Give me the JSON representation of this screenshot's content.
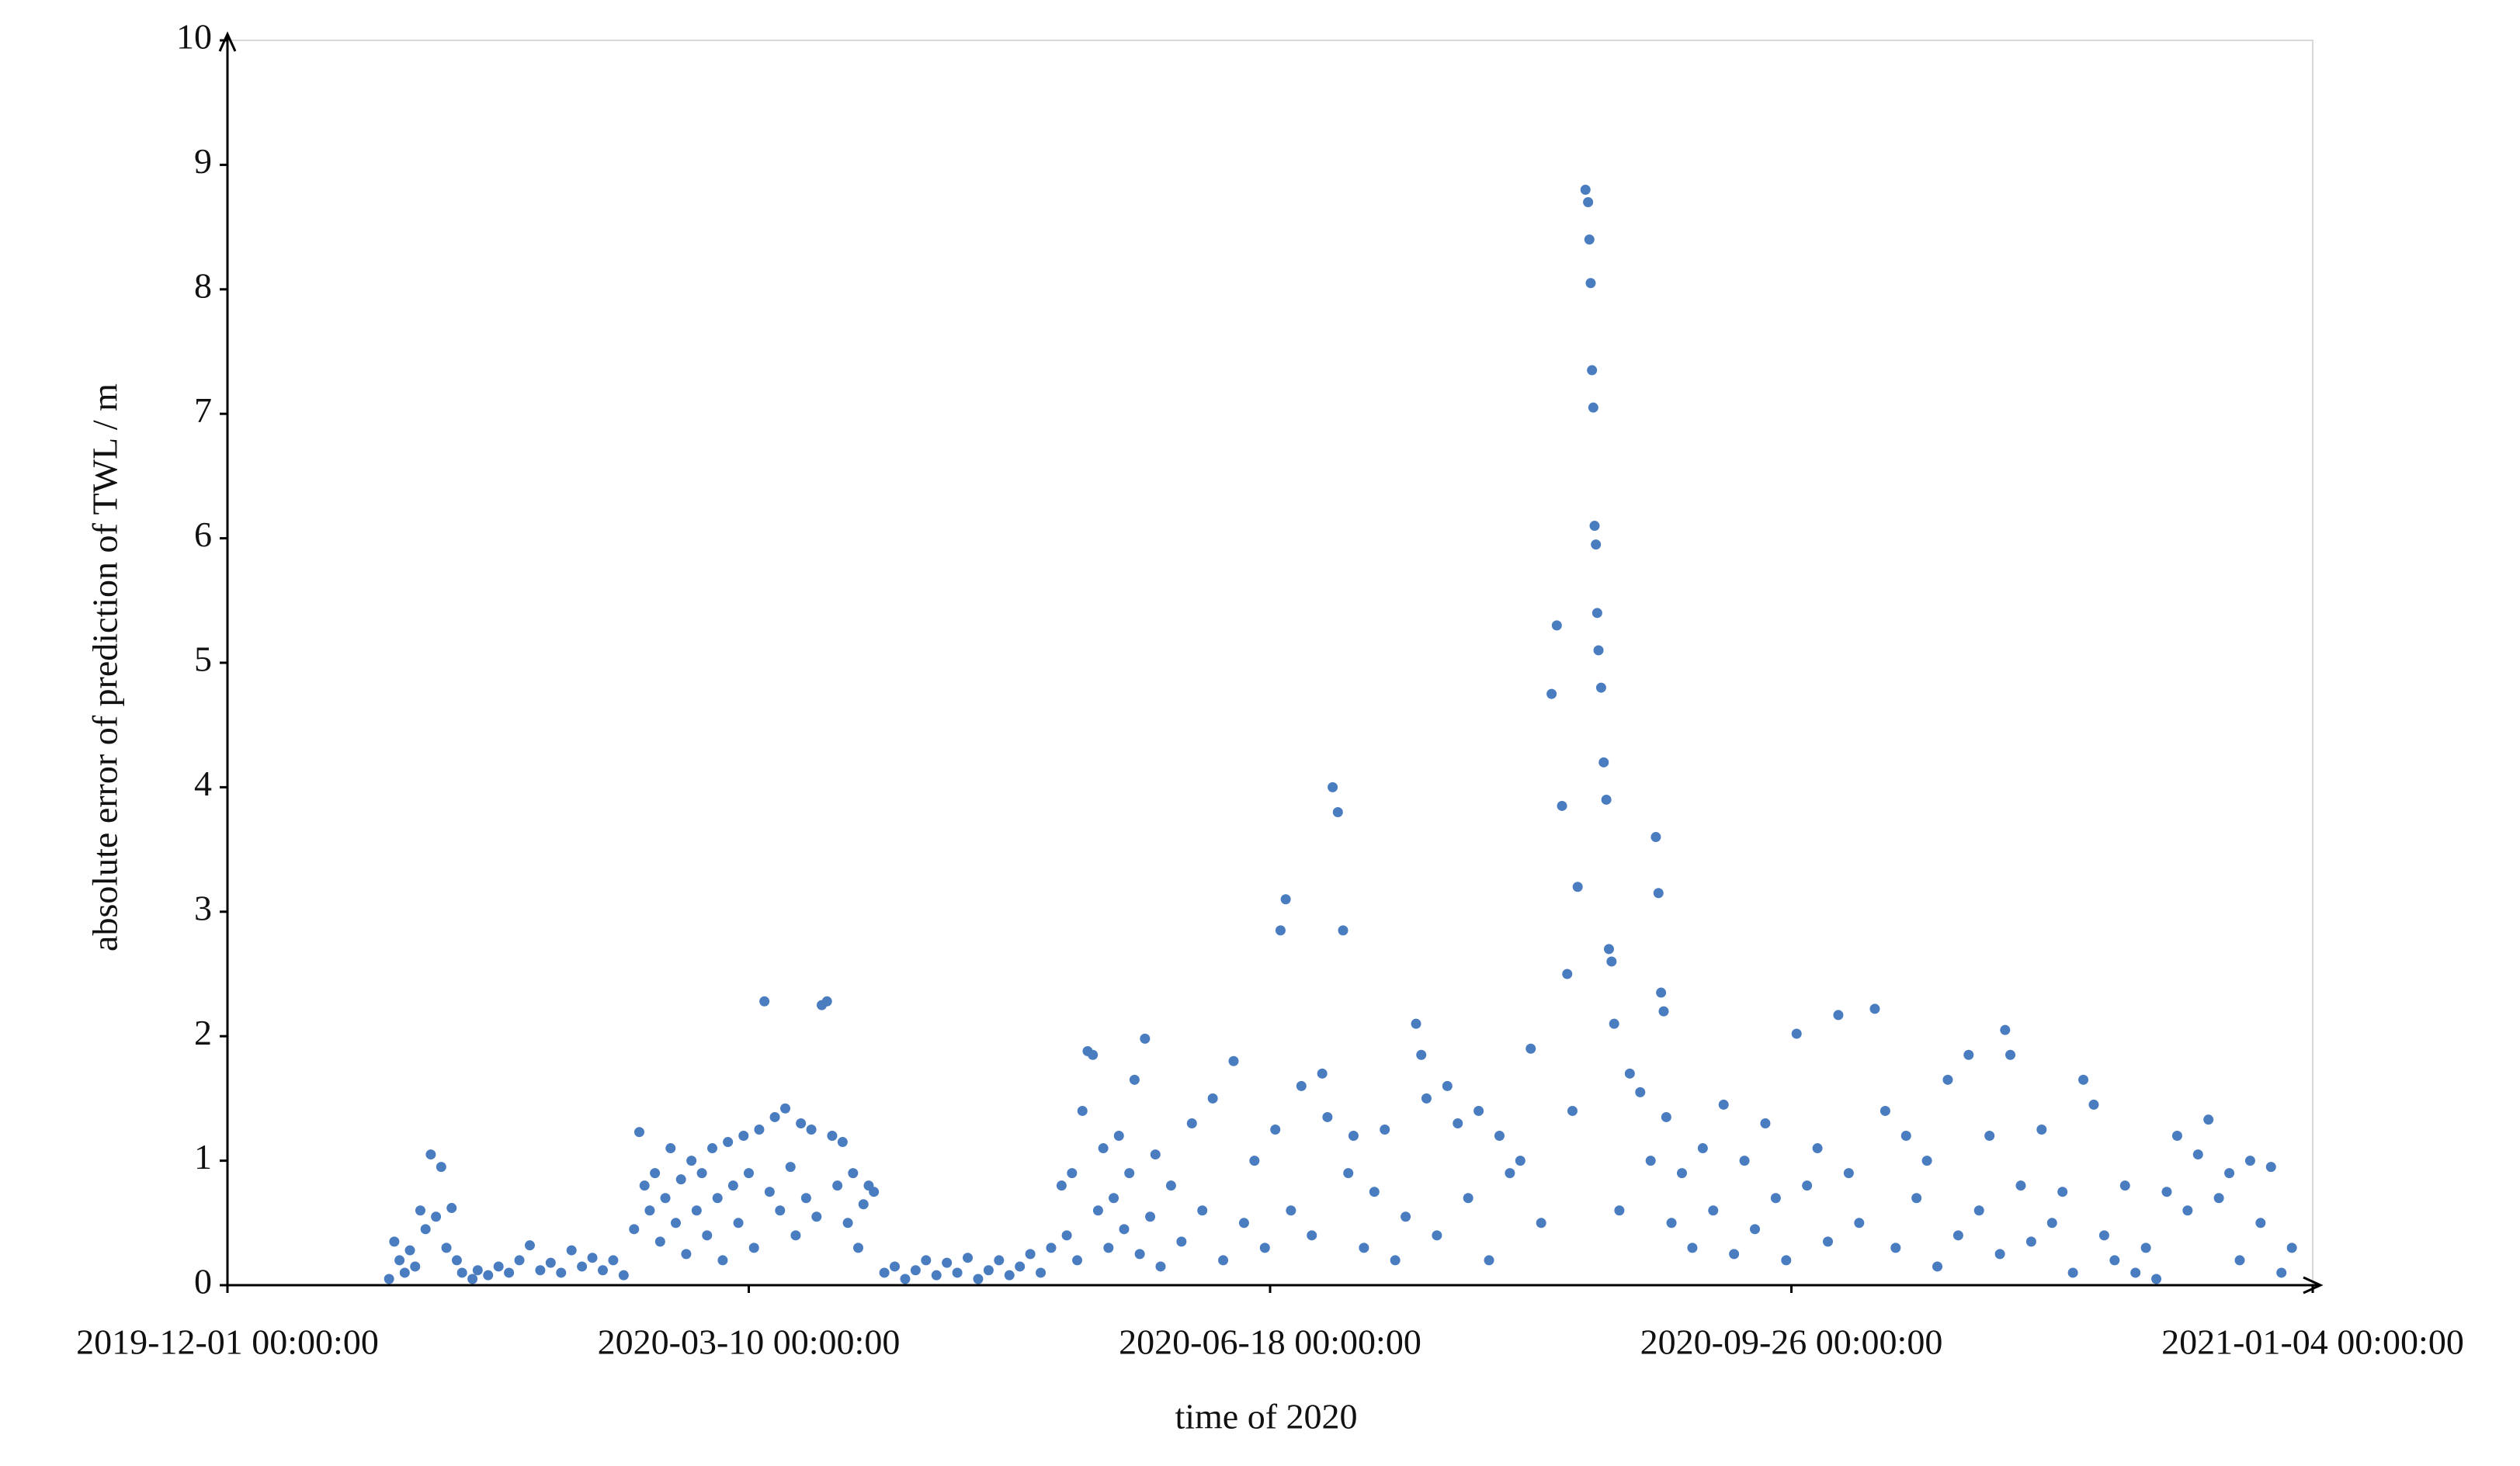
{
  "chart_data": {
    "type": "scatter",
    "x_label": "time of 2020",
    "y_label": "absolute error of prediction of TWL / m",
    "xlim": [
      "2019-12-01 00:00:00",
      "2021-01-04 00:00:00"
    ],
    "xticks": [
      "2019-12-01 00:00:00",
      "2020-03-10 00:00:00",
      "2020-06-18 00:00:00",
      "2020-09-26 00:00:00",
      "2021-01-04 00:00:00"
    ],
    "ylim": [
      0,
      10
    ],
    "yticks": [
      0,
      1,
      2,
      3,
      4,
      5,
      6,
      7,
      8,
      9,
      10
    ],
    "grid": false,
    "x": [
      "2020-01-01 00:00:00",
      "2020-01-02 00:00:00",
      "2020-01-03 00:00:00",
      "2020-01-04 00:00:00",
      "2020-01-05 00:00:00",
      "2020-01-06 00:00:00",
      "2020-01-07 00:00:00",
      "2020-01-08 00:00:00",
      "2020-01-09 00:00:00",
      "2020-01-10 00:00:00",
      "2020-01-11 00:00:00",
      "2020-01-12 00:00:00",
      "2020-01-13 00:00:00",
      "2020-01-14 00:00:00",
      "2020-01-15 00:00:00",
      "2020-01-17 00:00:00",
      "2020-01-18 00:00:00",
      "2020-01-20 00:00:00",
      "2020-01-22 00:00:00",
      "2020-01-24 00:00:00",
      "2020-01-26 00:00:00",
      "2020-01-28 00:00:00",
      "2020-01-30 00:00:00",
      "2020-02-01 00:00:00",
      "2020-02-03 00:00:00",
      "2020-02-05 00:00:00",
      "2020-02-07 00:00:00",
      "2020-02-09 00:00:00",
      "2020-02-11 00:00:00",
      "2020-02-13 00:00:00",
      "2020-02-15 00:00:00",
      "2020-02-17 00:00:00",
      "2020-02-18 00:00:00",
      "2020-02-19 00:00:00",
      "2020-02-20 00:00:00",
      "2020-02-21 00:00:00",
      "2020-02-22 00:00:00",
      "2020-02-23 00:00:00",
      "2020-02-24 00:00:00",
      "2020-02-25 00:00:00",
      "2020-02-26 00:00:00",
      "2020-02-27 00:00:00",
      "2020-02-28 00:00:00",
      "2020-02-29 00:00:00",
      "2020-03-01 00:00:00",
      "2020-03-02 00:00:00",
      "2020-03-03 00:00:00",
      "2020-03-04 00:00:00",
      "2020-03-05 00:00:00",
      "2020-03-06 00:00:00",
      "2020-03-07 00:00:00",
      "2020-03-08 00:00:00",
      "2020-03-09 00:00:00",
      "2020-03-10 00:00:00",
      "2020-03-11 00:00:00",
      "2020-03-12 00:00:00",
      "2020-03-13 00:00:00",
      "2020-03-14 00:00:00",
      "2020-03-15 00:00:00",
      "2020-03-16 00:00:00",
      "2020-03-17 00:00:00",
      "2020-03-18 00:00:00",
      "2020-03-19 00:00:00",
      "2020-03-20 00:00:00",
      "2020-03-21 00:00:00",
      "2020-03-22 00:00:00",
      "2020-03-23 00:00:00",
      "2020-03-24 00:00:00",
      "2020-03-25 00:00:00",
      "2020-03-26 00:00:00",
      "2020-03-27 00:00:00",
      "2020-03-28 00:00:00",
      "2020-03-29 00:00:00",
      "2020-03-30 00:00:00",
      "2020-03-31 00:00:00",
      "2020-04-01 00:00:00",
      "2020-04-02 00:00:00",
      "2020-04-03 00:00:00",
      "2020-04-05 00:00:00",
      "2020-04-07 00:00:00",
      "2020-04-09 00:00:00",
      "2020-04-11 00:00:00",
      "2020-04-13 00:00:00",
      "2020-04-15 00:00:00",
      "2020-04-17 00:00:00",
      "2020-04-19 00:00:00",
      "2020-04-21 00:00:00",
      "2020-04-23 00:00:00",
      "2020-04-25 00:00:00",
      "2020-04-27 00:00:00",
      "2020-04-29 00:00:00",
      "2020-05-01 00:00:00",
      "2020-05-03 00:00:00",
      "2020-05-05 00:00:00",
      "2020-05-07 00:00:00",
      "2020-05-09 00:00:00",
      "2020-05-10 00:00:00",
      "2020-05-11 00:00:00",
      "2020-05-12 00:00:00",
      "2020-05-13 00:00:00",
      "2020-05-14 00:00:00",
      "2020-05-15 00:00:00",
      "2020-05-16 00:00:00",
      "2020-05-17 00:00:00",
      "2020-05-18 00:00:00",
      "2020-05-19 00:00:00",
      "2020-05-20 00:00:00",
      "2020-05-21 00:00:00",
      "2020-05-22 00:00:00",
      "2020-05-23 00:00:00",
      "2020-05-24 00:00:00",
      "2020-05-25 00:00:00",
      "2020-05-26 00:00:00",
      "2020-05-27 00:00:00",
      "2020-05-28 00:00:00",
      "2020-05-30 00:00:00",
      "2020-06-01 00:00:00",
      "2020-06-03 00:00:00",
      "2020-06-05 00:00:00",
      "2020-06-07 00:00:00",
      "2020-06-09 00:00:00",
      "2020-06-11 00:00:00",
      "2020-06-13 00:00:00",
      "2020-06-15 00:00:00",
      "2020-06-17 00:00:00",
      "2020-06-19 00:00:00",
      "2020-06-20 00:00:00",
      "2020-06-21 00:00:00",
      "2020-06-22 00:00:00",
      "2020-06-24 00:00:00",
      "2020-06-26 00:00:00",
      "2020-06-28 00:00:00",
      "2020-06-29 00:00:00",
      "2020-06-30 00:00:00",
      "2020-07-01 00:00:00",
      "2020-07-02 00:00:00",
      "2020-07-03 00:00:00",
      "2020-07-04 00:00:00",
      "2020-07-06 00:00:00",
      "2020-07-08 00:00:00",
      "2020-07-10 00:00:00",
      "2020-07-12 00:00:00",
      "2020-07-14 00:00:00",
      "2020-07-16 00:00:00",
      "2020-07-17 00:00:00",
      "2020-07-18 00:00:00",
      "2020-07-20 00:00:00",
      "2020-07-22 00:00:00",
      "2020-07-24 00:00:00",
      "2020-07-26 00:00:00",
      "2020-07-28 00:00:00",
      "2020-07-30 00:00:00",
      "2020-08-01 00:00:00",
      "2020-08-03 00:00:00",
      "2020-08-05 00:00:00",
      "2020-08-07 00:00:00",
      "2020-08-09 00:00:00",
      "2020-08-11 00:00:00",
      "2020-08-12 00:00:00",
      "2020-08-13 00:00:00",
      "2020-08-14 00:00:00",
      "2020-08-15 00:00:00",
      "2020-08-16 00:00:00",
      "2020-08-17 12:00:00",
      "2020-08-18 00:00:00",
      "2020-08-18 06:00:00",
      "2020-08-18 12:00:00",
      "2020-08-18 18:00:00",
      "2020-08-19 00:00:00",
      "2020-08-19 06:00:00",
      "2020-08-19 12:00:00",
      "2020-08-19 18:00:00",
      "2020-08-20 00:00:00",
      "2020-08-20 12:00:00",
      "2020-08-21 00:00:00",
      "2020-08-21 12:00:00",
      "2020-08-22 00:00:00",
      "2020-08-22 12:00:00",
      "2020-08-23 00:00:00",
      "2020-08-24 00:00:00",
      "2020-08-26 00:00:00",
      "2020-08-28 00:00:00",
      "2020-08-30 00:00:00",
      "2020-08-31 00:00:00",
      "2020-08-31 12:00:00",
      "2020-09-01 00:00:00",
      "2020-09-01 12:00:00",
      "2020-09-02 00:00:00",
      "2020-09-03 00:00:00",
      "2020-09-05 00:00:00",
      "2020-09-07 00:00:00",
      "2020-09-09 00:00:00",
      "2020-09-11 00:00:00",
      "2020-09-13 00:00:00",
      "2020-09-15 00:00:00",
      "2020-09-17 00:00:00",
      "2020-09-19 00:00:00",
      "2020-09-21 00:00:00",
      "2020-09-23 00:00:00",
      "2020-09-25 00:00:00",
      "2020-09-27 00:00:00",
      "2020-09-29 00:00:00",
      "2020-10-01 00:00:00",
      "2020-10-03 00:00:00",
      "2020-10-05 00:00:00",
      "2020-10-07 00:00:00",
      "2020-10-09 00:00:00",
      "2020-10-12 00:00:00",
      "2020-10-14 00:00:00",
      "2020-10-16 00:00:00",
      "2020-10-18 00:00:00",
      "2020-10-20 00:00:00",
      "2020-10-22 00:00:00",
      "2020-10-24 00:00:00",
      "2020-10-26 00:00:00",
      "2020-10-28 00:00:00",
      "2020-10-30 00:00:00",
      "2020-11-01 00:00:00",
      "2020-11-03 00:00:00",
      "2020-11-05 00:00:00",
      "2020-11-06 00:00:00",
      "2020-11-07 00:00:00",
      "2020-11-09 00:00:00",
      "2020-11-11 00:00:00",
      "2020-11-13 00:00:00",
      "2020-11-15 00:00:00",
      "2020-11-17 00:00:00",
      "2020-11-19 00:00:00",
      "2020-11-21 00:00:00",
      "2020-11-23 00:00:00",
      "2020-11-25 00:00:00",
      "2020-11-27 00:00:00",
      "2020-11-29 00:00:00",
      "2020-12-01 00:00:00",
      "2020-12-03 00:00:00",
      "2020-12-05 00:00:00",
      "2020-12-07 00:00:00",
      "2020-12-09 00:00:00",
      "2020-12-11 00:00:00",
      "2020-12-13 00:00:00",
      "2020-12-15 00:00:00",
      "2020-12-17 00:00:00",
      "2020-12-19 00:00:00",
      "2020-12-21 00:00:00",
      "2020-12-23 00:00:00",
      "2020-12-25 00:00:00",
      "2020-12-27 00:00:00",
      "2020-12-29 00:00:00",
      "2020-12-31 00:00:00"
    ],
    "series": [
      {
        "color": "#4a7cc0",
        "values": [
          0.05,
          0.35,
          0.2,
          0.1,
          0.28,
          0.15,
          0.6,
          0.45,
          1.05,
          0.55,
          0.95,
          0.3,
          0.62,
          0.2,
          0.1,
          0.05,
          0.12,
          0.08,
          0.15,
          0.1,
          0.2,
          0.32,
          0.12,
          0.18,
          0.1,
          0.28,
          0.15,
          0.22,
          0.12,
          0.2,
          0.08,
          0.45,
          1.23,
          0.8,
          0.6,
          0.9,
          0.35,
          0.7,
          1.1,
          0.5,
          0.85,
          0.25,
          1.0,
          0.6,
          0.9,
          0.4,
          1.1,
          0.7,
          0.2,
          1.15,
          0.8,
          0.5,
          1.2,
          0.9,
          0.3,
          1.25,
          2.28,
          0.75,
          1.35,
          0.6,
          1.42,
          0.95,
          0.4,
          1.3,
          0.7,
          1.25,
          0.55,
          2.25,
          2.28,
          1.2,
          0.8,
          1.15,
          0.5,
          0.9,
          0.3,
          0.65,
          0.8,
          0.75,
          0.1,
          0.15,
          0.05,
          0.12,
          0.2,
          0.08,
          0.18,
          0.1,
          0.22,
          0.05,
          0.12,
          0.2,
          0.08,
          0.15,
          0.25,
          0.1,
          0.3,
          0.8,
          0.4,
          0.9,
          0.2,
          1.4,
          1.88,
          1.85,
          0.6,
          1.1,
          0.3,
          0.7,
          1.2,
          0.45,
          0.9,
          1.65,
          0.25,
          1.98,
          0.55,
          1.05,
          0.15,
          0.8,
          0.35,
          1.3,
          0.6,
          1.5,
          0.2,
          1.8,
          0.5,
          1.0,
          0.3,
          1.25,
          2.85,
          3.1,
          0.6,
          1.6,
          0.4,
          1.7,
          1.35,
          4.0,
          3.8,
          2.85,
          0.9,
          1.2,
          0.3,
          0.75,
          1.25,
          0.2,
          0.55,
          2.1,
          1.85,
          1.5,
          0.4,
          1.6,
          1.3,
          0.7,
          1.4,
          0.2,
          1.2,
          0.9,
          1.0,
          1.9,
          0.5,
          4.75,
          5.3,
          3.85,
          2.5,
          1.4,
          3.2,
          8.8,
          8.7,
          8.4,
          8.05,
          7.35,
          7.05,
          6.1,
          5.95,
          5.4,
          5.1,
          4.8,
          4.2,
          3.9,
          2.7,
          2.6,
          2.1,
          0.6,
          1.7,
          1.55,
          1.0,
          3.6,
          3.15,
          2.35,
          2.2,
          1.35,
          0.5,
          0.9,
          0.3,
          1.1,
          0.6,
          1.45,
          0.25,
          1.0,
          0.45,
          1.3,
          0.7,
          0.2,
          2.02,
          0.8,
          1.1,
          0.35,
          2.17,
          0.9,
          0.5,
          2.22,
          1.4,
          0.3,
          1.2,
          0.7,
          1.0,
          0.15,
          1.65,
          0.4,
          1.85,
          0.6,
          1.2,
          0.25,
          2.05,
          1.85,
          0.8,
          0.35,
          1.25,
          0.5,
          0.75,
          0.1,
          1.65,
          1.45,
          0.4,
          0.2,
          0.8,
          0.1,
          0.3,
          0.05,
          0.75,
          1.2,
          0.6,
          1.05,
          1.33,
          0.7,
          0.9,
          0.2,
          1.0,
          0.5,
          0.95,
          0.1,
          0.3
        ]
      }
    ]
  }
}
